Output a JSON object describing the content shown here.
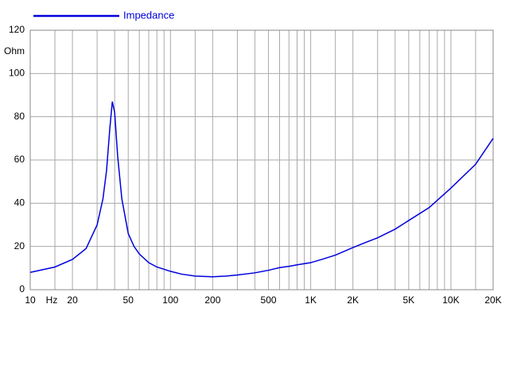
{
  "chart_data": {
    "type": "line",
    "xlabel": "Hz",
    "ylabel": "Ohm",
    "x_log": true,
    "grid": true,
    "xlim": [
      10,
      20000
    ],
    "ylim": [
      0,
      120
    ],
    "xticks": [
      10,
      20,
      50,
      100,
      200,
      500,
      {
        "value": 1000,
        "label": "1K"
      },
      {
        "value": 2000,
        "label": "2K"
      },
      {
        "value": 5000,
        "label": "5K"
      },
      {
        "value": 10000,
        "label": "10K"
      },
      {
        "value": 20000,
        "label": "20K"
      }
    ],
    "x_minor_grid": [
      15,
      30,
      40,
      60,
      70,
      80,
      90,
      150,
      300,
      400,
      600,
      700,
      800,
      900,
      1500,
      3000,
      4000,
      6000,
      7000,
      8000,
      9000,
      15000
    ],
    "yticks": [
      0,
      20,
      40,
      60,
      80,
      100,
      120
    ],
    "x": [
      10,
      15,
      20,
      25,
      30,
      33,
      35,
      37,
      38.5,
      40,
      42,
      45,
      50,
      55,
      60,
      70,
      80,
      100,
      120,
      150,
      200,
      250,
      300,
      400,
      500,
      600,
      700,
      800,
      1000,
      1200,
      1500,
      2000,
      2500,
      3000,
      4000,
      5000,
      7000,
      10000,
      15000,
      20000
    ],
    "series": [
      {
        "name": "Impedance",
        "color": "#0000dd",
        "values": [
          8,
          10.5,
          14,
          19,
          30,
          42,
          55,
          75,
          87,
          82,
          62,
          42,
          26,
          20,
          16.5,
          12.5,
          10.5,
          8.5,
          7.2,
          6.3,
          6,
          6.3,
          6.8,
          7.8,
          9,
          10.2,
          10.8,
          11.5,
          12.5,
          14,
          16,
          19.5,
          22,
          24,
          28,
          32,
          38,
          47,
          58,
          70
        ]
      }
    ]
  }
}
